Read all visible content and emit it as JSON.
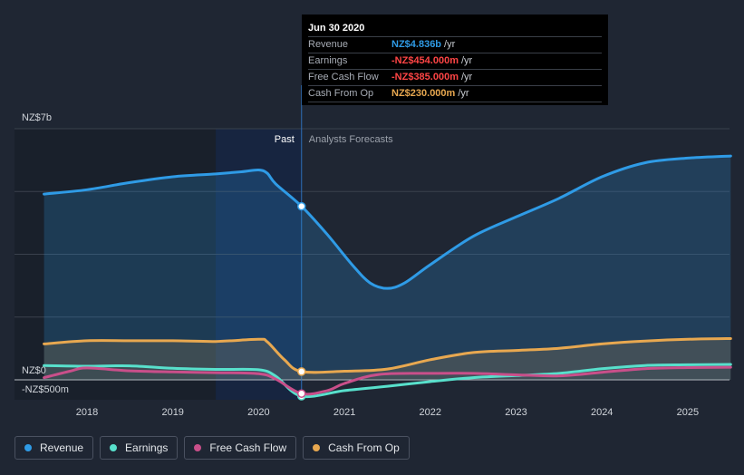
{
  "tooltip": {
    "date": "Jun 30 2020",
    "rows": [
      {
        "label": "Revenue",
        "value": "NZ$4.836b",
        "unit": "/yr",
        "color": "#2f9be6"
      },
      {
        "label": "Earnings",
        "value": "-NZ$454.000m",
        "unit": "/yr",
        "color": "#ff4545"
      },
      {
        "label": "Free Cash Flow",
        "value": "-NZ$385.000m",
        "unit": "/yr",
        "color": "#ff4545"
      },
      {
        "label": "Cash From Op",
        "value": "NZ$230.000m",
        "unit": "/yr",
        "color": "#e8a850"
      }
    ]
  },
  "chart_data": {
    "type": "line",
    "y_tick_labels": [
      "NZ$7b",
      "NZ$0",
      "-NZ$500m"
    ],
    "y_ticks": [
      7000,
      0,
      -500
    ],
    "ylim": [
      -500,
      7000
    ],
    "xlim": [
      2017.5,
      2025.5
    ],
    "x_ticks": [
      2018,
      2019,
      2020,
      2021,
      2022,
      2023,
      2024,
      2025
    ],
    "x_tick_labels": [
      "2018",
      "2019",
      "2020",
      "2021",
      "2022",
      "2023",
      "2024",
      "2025"
    ],
    "past_label": "Past",
    "forecast_label": "Analysts Forecasts",
    "divider_x": 2020.5,
    "highlight_start": 2019.5,
    "grid": true,
    "series": [
      {
        "name": "Revenue",
        "color": "#2f9be6",
        "area": true,
        "points": [
          [
            2017.5,
            5178
          ],
          [
            2018,
            5300
          ],
          [
            2018.5,
            5500
          ],
          [
            2019,
            5660
          ],
          [
            2019.5,
            5740
          ],
          [
            2019.8,
            5800
          ],
          [
            2020,
            5850
          ],
          [
            2020.1,
            5760
          ],
          [
            2020.2,
            5460
          ],
          [
            2020.5,
            4836
          ],
          [
            2020.8,
            4050
          ],
          [
            2021.1,
            3180
          ],
          [
            2021.3,
            2700
          ],
          [
            2021.5,
            2550
          ],
          [
            2021.7,
            2700
          ],
          [
            2022,
            3210
          ],
          [
            2022.5,
            4000
          ],
          [
            2023,
            4540
          ],
          [
            2023.5,
            5060
          ],
          [
            2024,
            5660
          ],
          [
            2024.5,
            6050
          ],
          [
            2025,
            6180
          ],
          [
            2025.5,
            6240
          ]
        ]
      },
      {
        "name": "Earnings",
        "color": "#58e0cc",
        "area": false,
        "points": [
          [
            2017.5,
            400
          ],
          [
            2018,
            380
          ],
          [
            2018.5,
            390
          ],
          [
            2019,
            320
          ],
          [
            2019.5,
            290
          ],
          [
            2020,
            280
          ],
          [
            2020.2,
            100
          ],
          [
            2020.5,
            -454
          ],
          [
            2021,
            -300
          ],
          [
            2021.5,
            -180
          ],
          [
            2022,
            -50
          ],
          [
            2022.5,
            60
          ],
          [
            2023,
            120
          ],
          [
            2023.5,
            180
          ],
          [
            2024,
            310
          ],
          [
            2024.5,
            400
          ],
          [
            2025,
            420
          ],
          [
            2025.5,
            430
          ]
        ]
      },
      {
        "name": "Free Cash Flow",
        "color": "#c94f8a",
        "area": false,
        "points": [
          [
            2017.5,
            60
          ],
          [
            2017.8,
            240
          ],
          [
            2018,
            330
          ],
          [
            2018.5,
            250
          ],
          [
            2019,
            220
          ],
          [
            2019.5,
            200
          ],
          [
            2020,
            170
          ],
          [
            2020.2,
            20
          ],
          [
            2020.5,
            -385
          ],
          [
            2020.8,
            -300
          ],
          [
            2021,
            -100
          ],
          [
            2021.4,
            150
          ],
          [
            2022,
            180
          ],
          [
            2022.5,
            180
          ],
          [
            2023,
            140
          ],
          [
            2023.5,
            110
          ],
          [
            2024,
            210
          ],
          [
            2024.5,
            310
          ],
          [
            2025,
            340
          ],
          [
            2025.5,
            350
          ]
        ]
      },
      {
        "name": "Cash From Op",
        "color": "#e8a850",
        "area": true,
        "points": [
          [
            2017.5,
            1000
          ],
          [
            2018,
            1090
          ],
          [
            2018.5,
            1090
          ],
          [
            2019,
            1090
          ],
          [
            2019.5,
            1070
          ],
          [
            2020,
            1130
          ],
          [
            2020.1,
            1060
          ],
          [
            2020.3,
            560
          ],
          [
            2020.5,
            230
          ],
          [
            2021,
            240
          ],
          [
            2021.5,
            300
          ],
          [
            2022,
            560
          ],
          [
            2022.5,
            760
          ],
          [
            2023,
            820
          ],
          [
            2023.5,
            880
          ],
          [
            2024,
            1000
          ],
          [
            2024.5,
            1080
          ],
          [
            2025,
            1130
          ],
          [
            2025.5,
            1150
          ]
        ]
      }
    ]
  },
  "legend": [
    {
      "label": "Revenue",
      "color": "#2f9be6"
    },
    {
      "label": "Earnings",
      "color": "#58e0cc"
    },
    {
      "label": "Free Cash Flow",
      "color": "#c94f8a"
    },
    {
      "label": "Cash From Op",
      "color": "#e8a850"
    }
  ]
}
